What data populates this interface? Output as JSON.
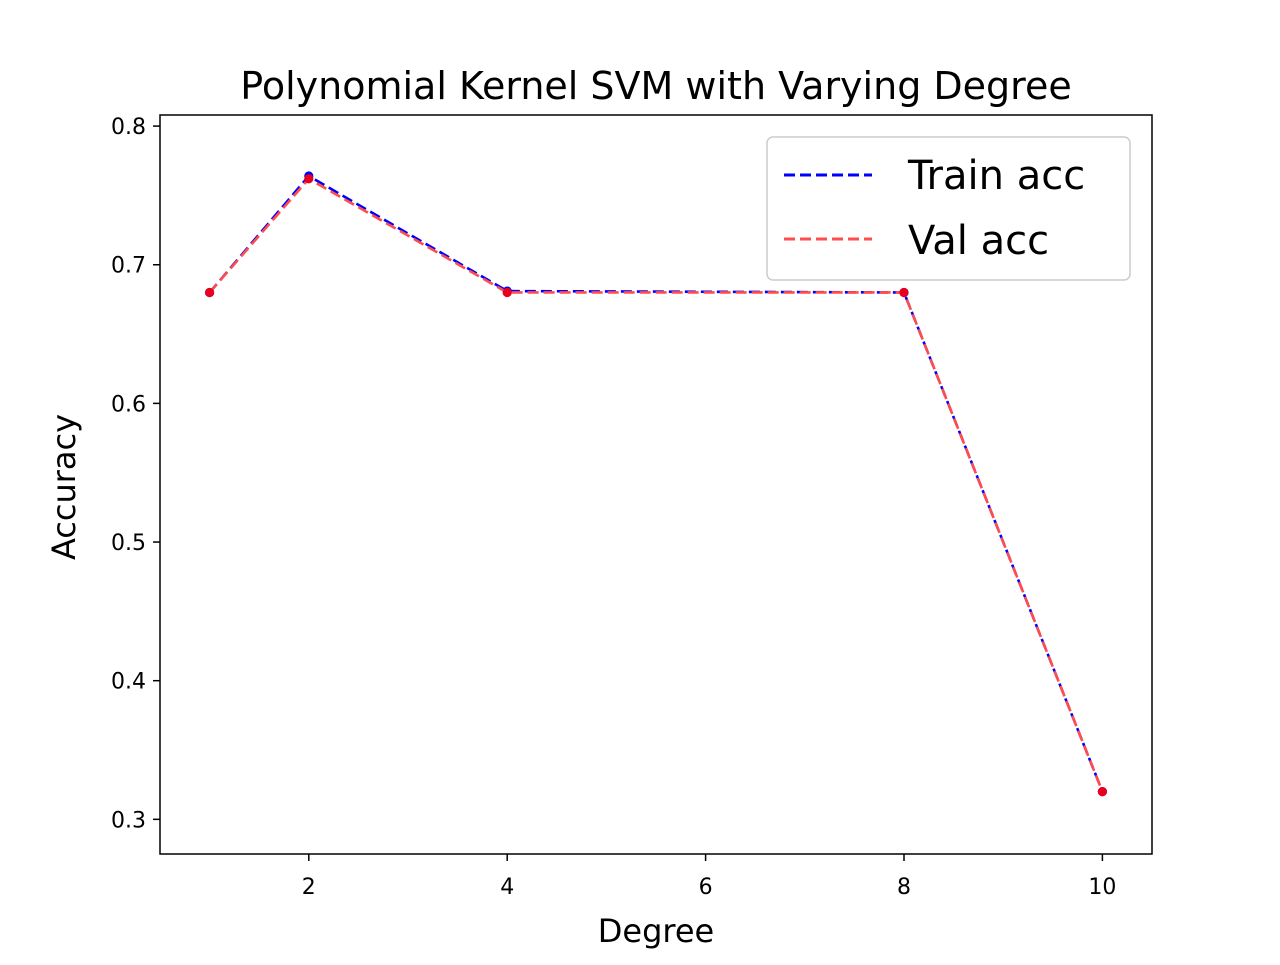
{
  "chart_data": {
    "type": "line",
    "title": "Polynomial Kernel SVM with Varying Degree",
    "xlabel": "Degree",
    "ylabel": "Accuracy",
    "x": [
      1,
      2,
      4,
      8,
      10
    ],
    "xlim": [
      0.5,
      10.5
    ],
    "ylim": [
      0.275,
      0.808
    ],
    "xticks": [
      2,
      4,
      6,
      8,
      10
    ],
    "xtick_labels": [
      "2",
      "4",
      "6",
      "8",
      "10"
    ],
    "yticks": [
      0.3,
      0.4,
      0.5,
      0.6,
      0.7,
      0.8
    ],
    "ytick_labels": [
      "0.3",
      "0.4",
      "0.5",
      "0.6",
      "0.7",
      "0.8"
    ],
    "grid": false,
    "legend_position": "top-right",
    "series": [
      {
        "name": "Train acc",
        "values": [
          0.68,
          0.764,
          0.681,
          0.68,
          0.32
        ],
        "color": "#0000ff",
        "line_style": "dashed",
        "marker": "dot"
      },
      {
        "name": "Val acc",
        "values": [
          0.68,
          0.762,
          0.68,
          0.68,
          0.32
        ],
        "color": "#ff4d4d",
        "line_style": "dashed",
        "marker": "dot",
        "marker_color": "#e8001c"
      }
    ]
  }
}
